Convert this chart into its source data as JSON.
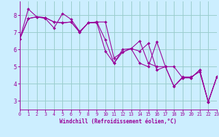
{
  "xlabel": "Windchill (Refroidissement éolien,°C)",
  "bg_color": "#cceeff",
  "line_color": "#990099",
  "grid_color": "#99cccc",
  "axis_color": "#990099",
  "tick_color": "#990099",
  "xlim": [
    0,
    23
  ],
  "ylim": [
    2.5,
    8.8
  ],
  "yticks": [
    3,
    4,
    5,
    6,
    7,
    8
  ],
  "xticks": [
    0,
    1,
    2,
    3,
    4,
    5,
    6,
    7,
    8,
    9,
    10,
    11,
    12,
    13,
    14,
    15,
    16,
    17,
    18,
    19,
    20,
    21,
    22,
    23
  ],
  "series": [
    [
      6.6,
      7.8,
      7.9,
      7.8,
      7.25,
      8.1,
      7.75,
      7.05,
      7.55,
      7.55,
      5.9,
      5.2,
      6.0,
      6.05,
      5.9,
      6.35,
      4.8,
      5.0,
      3.85,
      4.4,
      4.4,
      4.7,
      2.95,
      4.4
    ],
    [
      6.6,
      8.35,
      7.9,
      7.85,
      7.6,
      7.55,
      7.6,
      7.0,
      7.55,
      7.6,
      6.55,
      5.2,
      5.85,
      6.05,
      5.2,
      5.0,
      6.45,
      5.0,
      3.85,
      4.35,
      4.35,
      4.8,
      2.95,
      4.4
    ],
    [
      6.6,
      7.8,
      7.9,
      7.85,
      7.6,
      7.55,
      7.6,
      7.0,
      7.55,
      7.6,
      7.6,
      5.5,
      5.85,
      6.05,
      6.5,
      5.2,
      5.0,
      5.0,
      5.0,
      4.35,
      4.35,
      4.8,
      2.95,
      4.4
    ]
  ]
}
